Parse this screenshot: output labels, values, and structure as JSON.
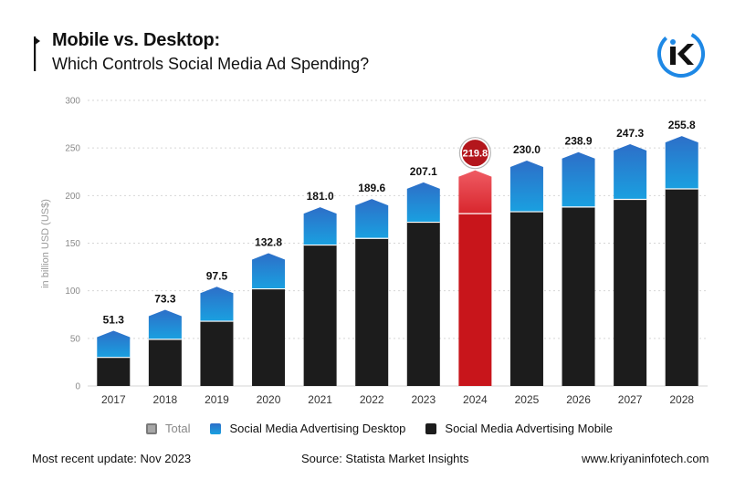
{
  "header": {
    "title_line1": "Mobile vs. Desktop:",
    "title_line2": "Which Controls Social Media Ad Spending?",
    "logo_icon": "kriyan-k-logo-icon"
  },
  "colors": {
    "mobile": "#1c1c1c",
    "desktop_top": "#2d6fc8",
    "desktop_bottom": "#1aa0e0",
    "highlight": "#c8151b",
    "highlight_top": "#e9525a",
    "total": "#999999",
    "grid": "#d6d6d6",
    "logo_blue": "#1e88e5"
  },
  "chart_data": {
    "type": "bar",
    "stacked": true,
    "title": "Mobile vs. Desktop: Which Controls Social Media Ad Spending?",
    "ylabel": "in billion USD (US$)",
    "xlabel": "",
    "ylim": [
      0,
      300
    ],
    "yticks": [
      0,
      50,
      100,
      150,
      200,
      250,
      300
    ],
    "grid": true,
    "categories": [
      "2017",
      "2018",
      "2019",
      "2020",
      "2021",
      "2022",
      "2023",
      "2024",
      "2025",
      "2026",
      "2027",
      "2028"
    ],
    "series": [
      {
        "name": "Social Media Advertising Mobile",
        "values": [
          30,
          49,
          68,
          102,
          148,
          155,
          172,
          181,
          183,
          188,
          196,
          207
        ]
      },
      {
        "name": "Social Media Advertising Desktop",
        "values": [
          21.3,
          24.3,
          29.5,
          30.8,
          33.0,
          34.6,
          35.1,
          38.8,
          47.0,
          50.9,
          51.3,
          48.8
        ]
      }
    ],
    "totals": [
      51.3,
      73.3,
      97.5,
      132.8,
      181.0,
      189.6,
      207.1,
      219.8,
      230.0,
      238.9,
      247.3,
      255.8
    ],
    "total_labels": [
      "51.3",
      "73.3",
      "97.5",
      "132.8",
      "181.0",
      "189.6",
      "207.1",
      "219.8",
      "230.0",
      "238.9",
      "247.3",
      "255.8"
    ],
    "highlight_category": "2024"
  },
  "legend": {
    "total": "Total",
    "desktop": "Social Media Advertising Desktop",
    "mobile": "Social Media Advertising Mobile"
  },
  "footer": {
    "update": "Most recent update: Nov 2023",
    "source": "Source: Statista Market Insights",
    "website": "www.kriyaninfotech.com"
  }
}
